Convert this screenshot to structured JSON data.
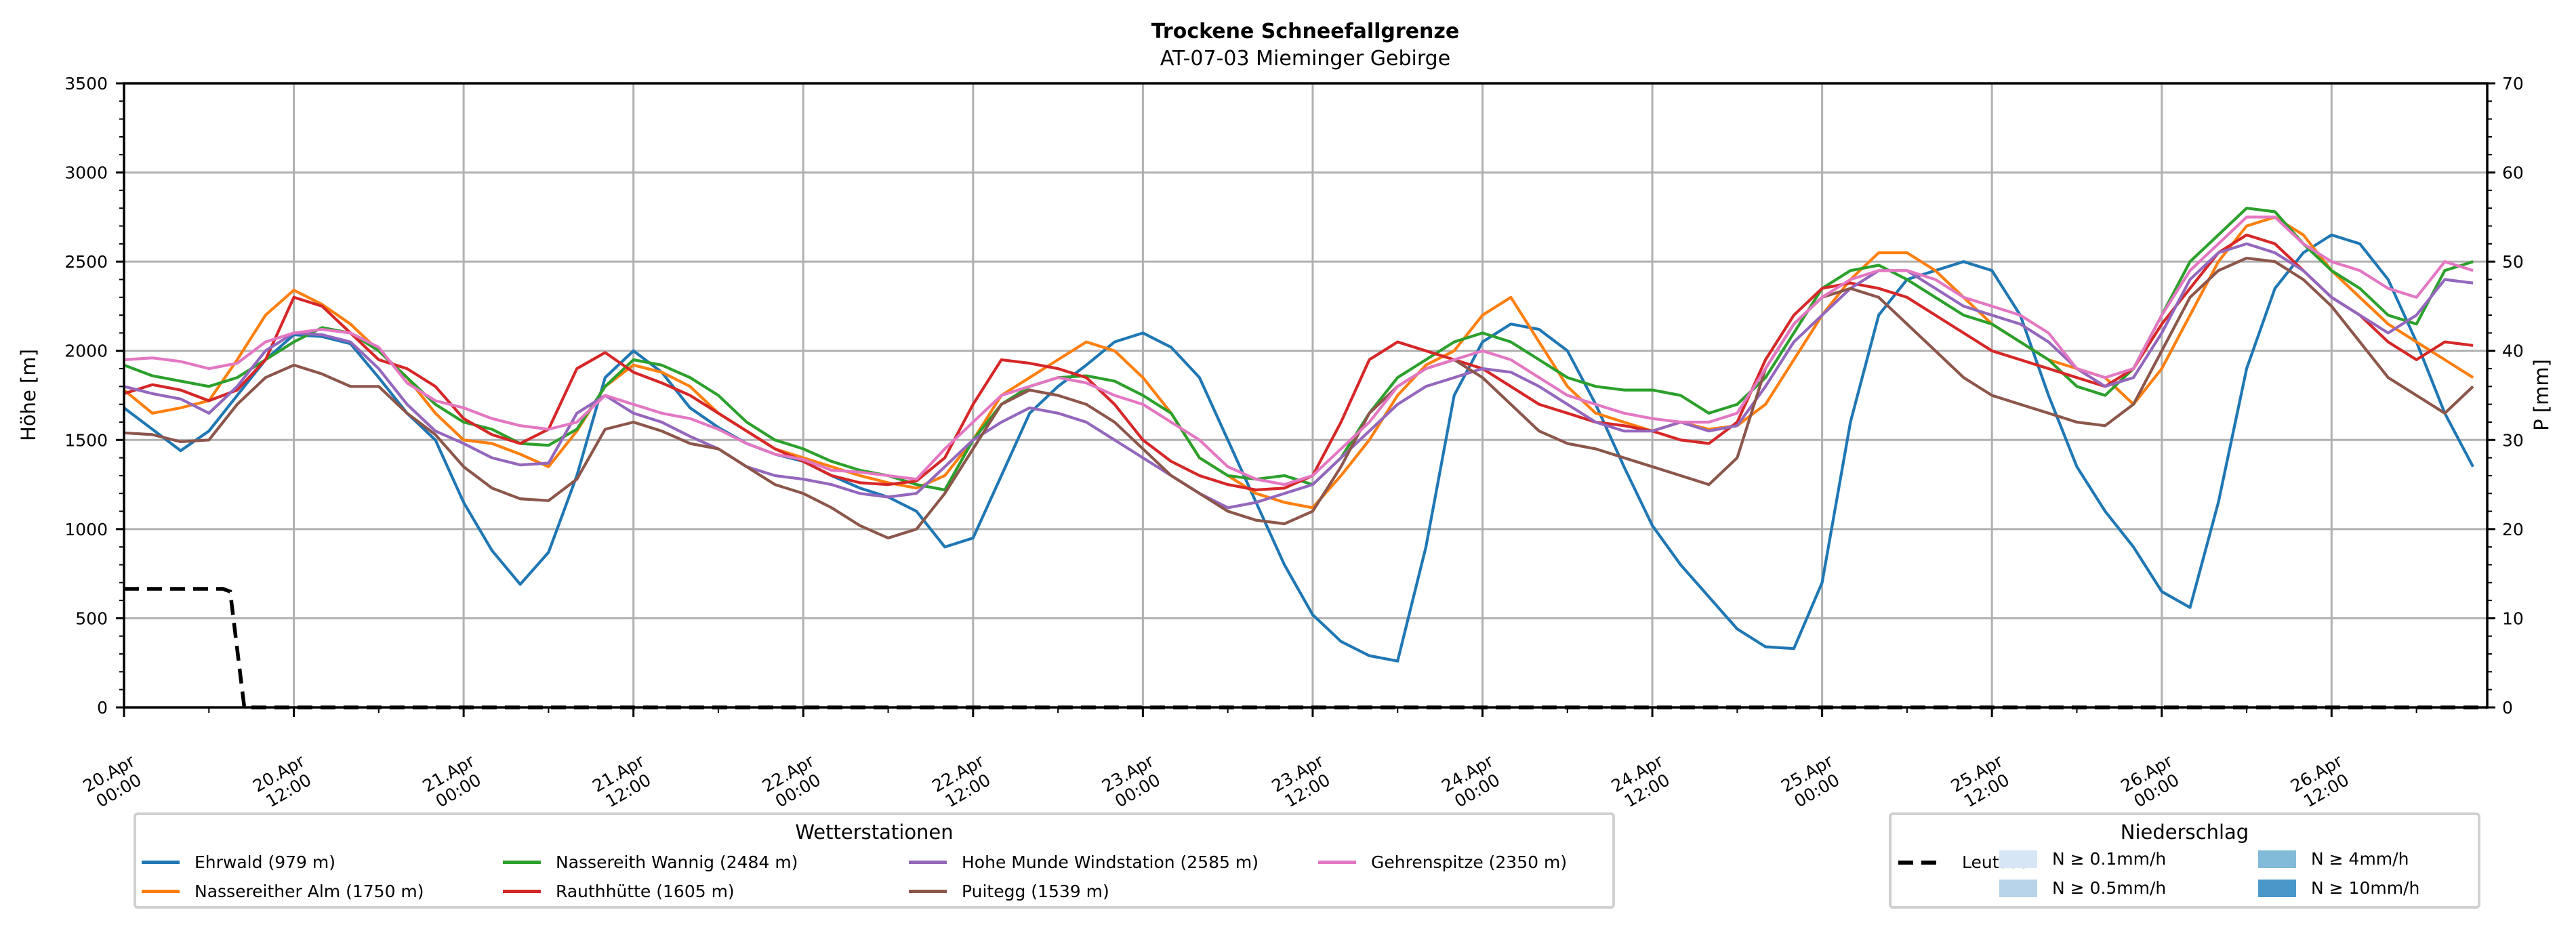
{
  "chart_data": {
    "type": "line",
    "title": "Trockene Schneefallgrenze",
    "subtitle": "AT-07-03 Mieminger Gebirge",
    "ylabel": "Höhe [m]",
    "y2label": "P [mm]",
    "ylim": [
      0,
      3500
    ],
    "y2lim": [
      0,
      70
    ],
    "yticks": [
      "0",
      "500",
      "1000",
      "1500",
      "2000",
      "2500",
      "3000",
      "3500"
    ],
    "y2ticks": [
      "0",
      "10",
      "20",
      "30",
      "40",
      "50",
      "60",
      "70"
    ],
    "grid": true,
    "x_unit": "hours since 20.Apr 00:00",
    "xlim": [
      0,
      167
    ],
    "xticks": [
      {
        "h": 0,
        "line1": "20.Apr",
        "line2": "00:00"
      },
      {
        "h": 12,
        "line1": "20.Apr",
        "line2": "12:00"
      },
      {
        "h": 24,
        "line1": "21.Apr",
        "line2": "00:00"
      },
      {
        "h": 36,
        "line1": "21.Apr",
        "line2": "12:00"
      },
      {
        "h": 48,
        "line1": "22.Apr",
        "line2": "00:00"
      },
      {
        "h": 60,
        "line1": "22.Apr",
        "line2": "12:00"
      },
      {
        "h": 72,
        "line1": "23.Apr",
        "line2": "00:00"
      },
      {
        "h": 84,
        "line1": "23.Apr",
        "line2": "12:00"
      },
      {
        "h": 96,
        "line1": "24.Apr",
        "line2": "00:00"
      },
      {
        "h": 108,
        "line1": "24.Apr",
        "line2": "12:00"
      },
      {
        "h": 120,
        "line1": "25.Apr",
        "line2": "00:00"
      },
      {
        "h": 132,
        "line1": "25.Apr",
        "line2": "12:00"
      },
      {
        "h": 144,
        "line1": "26.Apr",
        "line2": "00:00"
      },
      {
        "h": 156,
        "line1": "26.Apr",
        "line2": "12:00"
      }
    ],
    "x_step_hours": 2,
    "series": [
      {
        "name": "Ehrwald (979 m)",
        "color": "#1f77b4",
        "values": [
          1680,
          1560,
          1440,
          1550,
          1750,
          1950,
          2090,
          2080,
          2040,
          1850,
          1650,
          1500,
          1150,
          880,
          690,
          870,
          1300,
          1850,
          2000,
          1880,
          1680,
          1570,
          1480,
          1420,
          1380,
          1300,
          1230,
          1180,
          1100,
          900,
          950,
          1300,
          1650,
          1800,
          1920,
          2050,
          2100,
          2020,
          1850,
          1500,
          1150,
          800,
          520,
          370,
          290,
          260,
          900,
          1750,
          2050,
          2150,
          2120,
          2000,
          1700,
          1350,
          1020,
          800,
          620,
          440,
          340,
          330,
          700,
          1600,
          2200,
          2400,
          2450,
          2500,
          2450,
          2200,
          1750,
          1350,
          1100,
          900,
          650,
          560,
          1150,
          1900,
          2350,
          2550,
          2650,
          2600,
          2400,
          2050,
          1650,
          1350
        ]
      },
      {
        "name": "Nassereither Alm (1750 m)",
        "color": "#ff7f0e",
        "values": [
          1780,
          1650,
          1680,
          1720,
          1950,
          2200,
          2340,
          2260,
          2150,
          2000,
          1850,
          1650,
          1500,
          1480,
          1420,
          1350,
          1550,
          1800,
          1920,
          1880,
          1800,
          1650,
          1550,
          1450,
          1400,
          1350,
          1300,
          1260,
          1230,
          1300,
          1500,
          1750,
          1850,
          1950,
          2050,
          2000,
          1850,
          1650,
          1400,
          1300,
          1200,
          1150,
          1120,
          1300,
          1500,
          1750,
          1920,
          2000,
          2200,
          2300,
          2050,
          1800,
          1650,
          1600,
          1550,
          1600,
          1560,
          1580,
          1700,
          1950,
          2200,
          2400,
          2550,
          2550,
          2450,
          2300,
          2150,
          2050,
          1950,
          1900,
          1850,
          1700,
          1900,
          2200,
          2500,
          2700,
          2750,
          2650,
          2450,
          2300,
          2150,
          2050,
          1950,
          1850
        ]
      },
      {
        "name": "Nassereith Wannig (2484 m)",
        "color": "#2ca02c",
        "values": [
          1920,
          1860,
          1830,
          1800,
          1850,
          1950,
          2050,
          2130,
          2100,
          2000,
          1850,
          1700,
          1600,
          1560,
          1480,
          1470,
          1560,
          1800,
          1950,
          1920,
          1850,
          1750,
          1600,
          1500,
          1450,
          1380,
          1330,
          1300,
          1250,
          1220,
          1500,
          1700,
          1800,
          1850,
          1860,
          1830,
          1750,
          1650,
          1400,
          1300,
          1280,
          1300,
          1250,
          1400,
          1650,
          1850,
          1950,
          2050,
          2100,
          2050,
          1950,
          1850,
          1800,
          1780,
          1780,
          1750,
          1650,
          1700,
          1850,
          2100,
          2350,
          2450,
          2480,
          2400,
          2300,
          2200,
          2150,
          2050,
          1950,
          1800,
          1750,
          1900,
          2200,
          2500,
          2650,
          2800,
          2780,
          2600,
          2450,
          2350,
          2200,
          2150,
          2450,
          2500
        ]
      },
      {
        "name": "Rauthhütte (1605 m)",
        "color": "#d62728",
        "values": [
          1760,
          1810,
          1780,
          1720,
          1780,
          1950,
          2300,
          2250,
          2100,
          1950,
          1900,
          1800,
          1620,
          1530,
          1480,
          1560,
          1900,
          1990,
          1880,
          1820,
          1750,
          1650,
          1550,
          1450,
          1380,
          1300,
          1260,
          1250,
          1270,
          1400,
          1700,
          1950,
          1930,
          1900,
          1850,
          1700,
          1500,
          1380,
          1300,
          1250,
          1220,
          1230,
          1300,
          1600,
          1950,
          2050,
          2000,
          1950,
          1900,
          1800,
          1700,
          1650,
          1600,
          1580,
          1550,
          1500,
          1480,
          1600,
          1950,
          2200,
          2350,
          2380,
          2350,
          2300,
          2200,
          2100,
          2000,
          1950,
          1900,
          1850,
          1800,
          1900,
          2150,
          2350,
          2550,
          2650,
          2600,
          2450,
          2300,
          2200,
          2050,
          1950,
          2050,
          2030
        ]
      },
      {
        "name": "Hohe Munde Windstation (2585 m)",
        "color": "#9467bd",
        "values": [
          1800,
          1760,
          1730,
          1650,
          1800,
          2000,
          2100,
          2090,
          2050,
          1900,
          1700,
          1550,
          1480,
          1400,
          1360,
          1370,
          1650,
          1750,
          1650,
          1600,
          1520,
          1450,
          1350,
          1300,
          1280,
          1250,
          1200,
          1180,
          1200,
          1350,
          1500,
          1600,
          1680,
          1650,
          1600,
          1500,
          1400,
          1300,
          1200,
          1120,
          1150,
          1200,
          1250,
          1400,
          1550,
          1700,
          1800,
          1850,
          1900,
          1880,
          1800,
          1700,
          1600,
          1550,
          1550,
          1600,
          1550,
          1580,
          1800,
          2050,
          2200,
          2350,
          2450,
          2450,
          2350,
          2250,
          2200,
          2150,
          2050,
          1900,
          1800,
          1850,
          2100,
          2400,
          2550,
          2600,
          2550,
          2450,
          2300,
          2200,
          2100,
          2200,
          2400,
          2380
        ]
      },
      {
        "name": "Puitegg (1539 m)",
        "color": "#8c564b",
        "values": [
          1540,
          1530,
          1490,
          1500,
          1700,
          1850,
          1920,
          1870,
          1800,
          1800,
          1650,
          1530,
          1350,
          1230,
          1170,
          1160,
          1280,
          1560,
          1600,
          1550,
          1480,
          1450,
          1350,
          1250,
          1200,
          1120,
          1020,
          950,
          1000,
          1200,
          1450,
          1700,
          1780,
          1750,
          1700,
          1600,
          1450,
          1300,
          1200,
          1100,
          1050,
          1030,
          1100,
          1350,
          1650,
          1800,
          1900,
          1950,
          1850,
          1700,
          1550,
          1480,
          1450,
          1400,
          1350,
          1300,
          1250,
          1400,
          1900,
          2150,
          2300,
          2350,
          2300,
          2150,
          2000,
          1850,
          1750,
          1700,
          1650,
          1600,
          1580,
          1700,
          2000,
          2300,
          2450,
          2520,
          2500,
          2400,
          2250,
          2050,
          1850,
          1750,
          1650,
          1800
        ]
      },
      {
        "name": "Gehrenspitze (2350 m)",
        "color": "#e377c2",
        "values": [
          1950,
          1960,
          1940,
          1900,
          1930,
          2050,
          2100,
          2120,
          2100,
          2020,
          1820,
          1720,
          1680,
          1620,
          1580,
          1560,
          1600,
          1750,
          1700,
          1650,
          1620,
          1560,
          1480,
          1420,
          1390,
          1330,
          1320,
          1300,
          1280,
          1450,
          1600,
          1750,
          1800,
          1850,
          1820,
          1750,
          1700,
          1600,
          1500,
          1350,
          1280,
          1250,
          1300,
          1450,
          1600,
          1800,
          1900,
          1950,
          2000,
          1950,
          1850,
          1750,
          1700,
          1650,
          1620,
          1600,
          1600,
          1650,
          1900,
          2150,
          2300,
          2400,
          2450,
          2450,
          2400,
          2300,
          2250,
          2200,
          2100,
          1900,
          1850,
          1900,
          2200,
          2450,
          2600,
          2750,
          2750,
          2600,
          2500,
          2450,
          2350,
          2300,
          2500,
          2450
        ]
      }
    ],
    "dashed_series": {
      "name": "Leutasch",
      "axis": "right",
      "unit": "mm",
      "color": "#000000",
      "points": [
        [
          0,
          13.3
        ],
        [
          7,
          13.3
        ],
        [
          7.5,
          13.0
        ],
        [
          8.5,
          0
        ],
        [
          167,
          0
        ]
      ]
    }
  },
  "legend_stations": {
    "title": "Wetterstationen",
    "items": [
      {
        "label": "Ehrwald (979 m)",
        "color": "#1f77b4"
      },
      {
        "label": "Nassereither Alm (1750 m)",
        "color": "#ff7f0e"
      },
      {
        "label": "Nassereith Wannig (2484 m)",
        "color": "#2ca02c"
      },
      {
        "label": "Rauthhütte (1605 m)",
        "color": "#d62728"
      },
      {
        "label": "Hohe Munde Windstation (2585 m)",
        "color": "#9467bd"
      },
      {
        "label": "Puitegg (1539 m)",
        "color": "#8c564b"
      },
      {
        "label": "Gehrenspitze (2350 m)",
        "color": "#e377c2"
      }
    ]
  },
  "legend_precip": {
    "title": "Niederschlag",
    "dashed_label": "Leutasch",
    "items": [
      {
        "label": "N ≥ 0.1mm/h",
        "color": "#d6e6f4"
      },
      {
        "label": "N ≥ 0.5mm/h",
        "color": "#b7d4ea"
      },
      {
        "label": "N ≥ 4mm/h",
        "color": "#82bbd9"
      },
      {
        "label": "N ≥ 10mm/h",
        "color": "#4a98c9"
      }
    ]
  }
}
